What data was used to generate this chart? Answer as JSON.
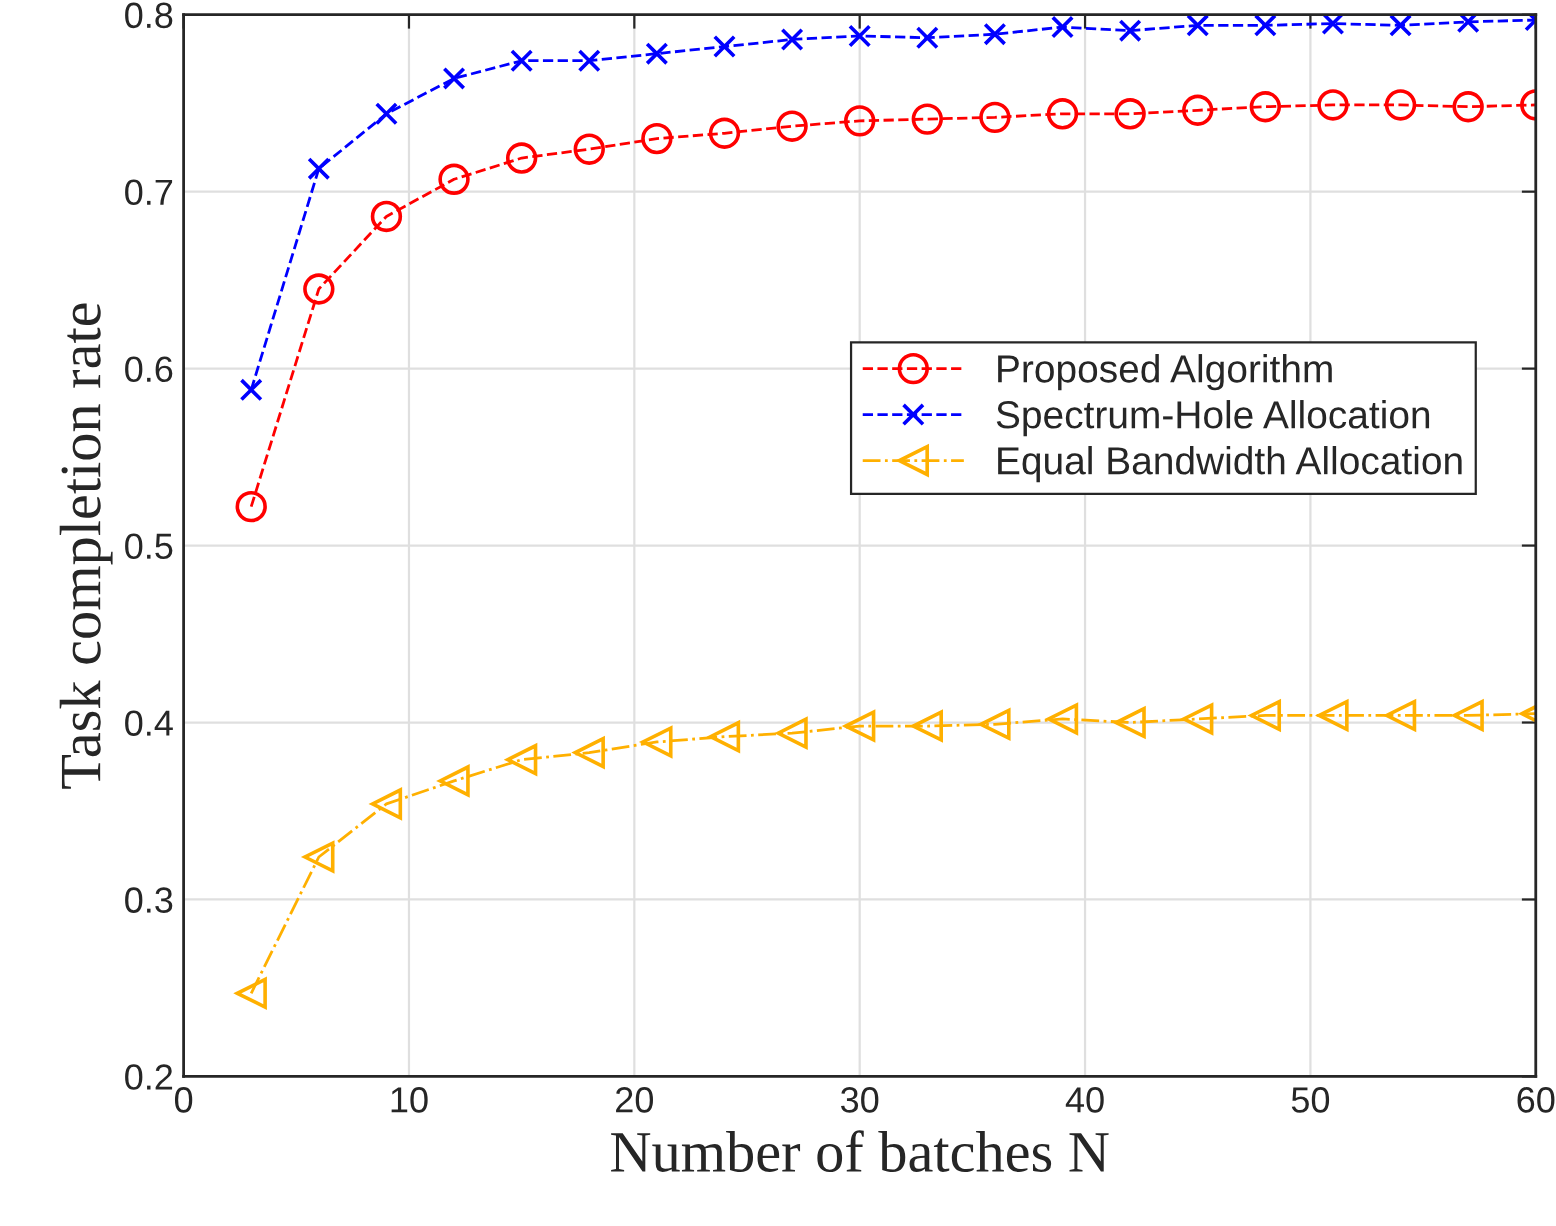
{
  "chart_data": {
    "type": "line",
    "xlabel": "Number of batches N",
    "ylabel": "Task completion rate",
    "x": [
      3,
      6,
      9,
      12,
      15,
      18,
      21,
      24,
      27,
      30,
      33,
      36,
      39,
      42,
      45,
      48,
      51,
      54,
      57,
      60
    ],
    "series": [
      {
        "name": "Proposed Algorithm",
        "color": "#ff0000",
        "marker": "circle",
        "line_style": "dashed",
        "values": [
          0.522,
          0.645,
          0.686,
          0.707,
          0.719,
          0.724,
          0.73,
          0.733,
          0.737,
          0.74,
          0.741,
          0.742,
          0.744,
          0.744,
          0.746,
          0.748,
          0.749,
          0.749,
          0.748,
          0.749
        ]
      },
      {
        "name": "Spectrum-Hole Allocation",
        "color": "#0000ff",
        "marker": "cross",
        "line_style": "dashed",
        "values": [
          0.588,
          0.713,
          0.744,
          0.764,
          0.774,
          0.774,
          0.778,
          0.782,
          0.786,
          0.788,
          0.787,
          0.789,
          0.793,
          0.791,
          0.794,
          0.794,
          0.795,
          0.794,
          0.796,
          0.797
        ]
      },
      {
        "name": "Equal Bandwidth Allocation",
        "color": "#ffb000",
        "marker": "triangle",
        "line_style": "dashdot",
        "values": [
          0.247,
          0.324,
          0.354,
          0.367,
          0.379,
          0.383,
          0.389,
          0.392,
          0.394,
          0.398,
          0.398,
          0.399,
          0.402,
          0.4,
          0.402,
          0.404,
          0.404,
          0.404,
          0.404,
          0.405
        ]
      }
    ],
    "xlim": [
      0,
      60
    ],
    "ylim": [
      0.2,
      0.8
    ],
    "xticks": [
      0,
      10,
      20,
      30,
      40,
      50,
      60
    ],
    "yticks": [
      0.2,
      0.3,
      0.4,
      0.5,
      0.6,
      0.7,
      0.8
    ],
    "grid": true,
    "legend": "right"
  }
}
